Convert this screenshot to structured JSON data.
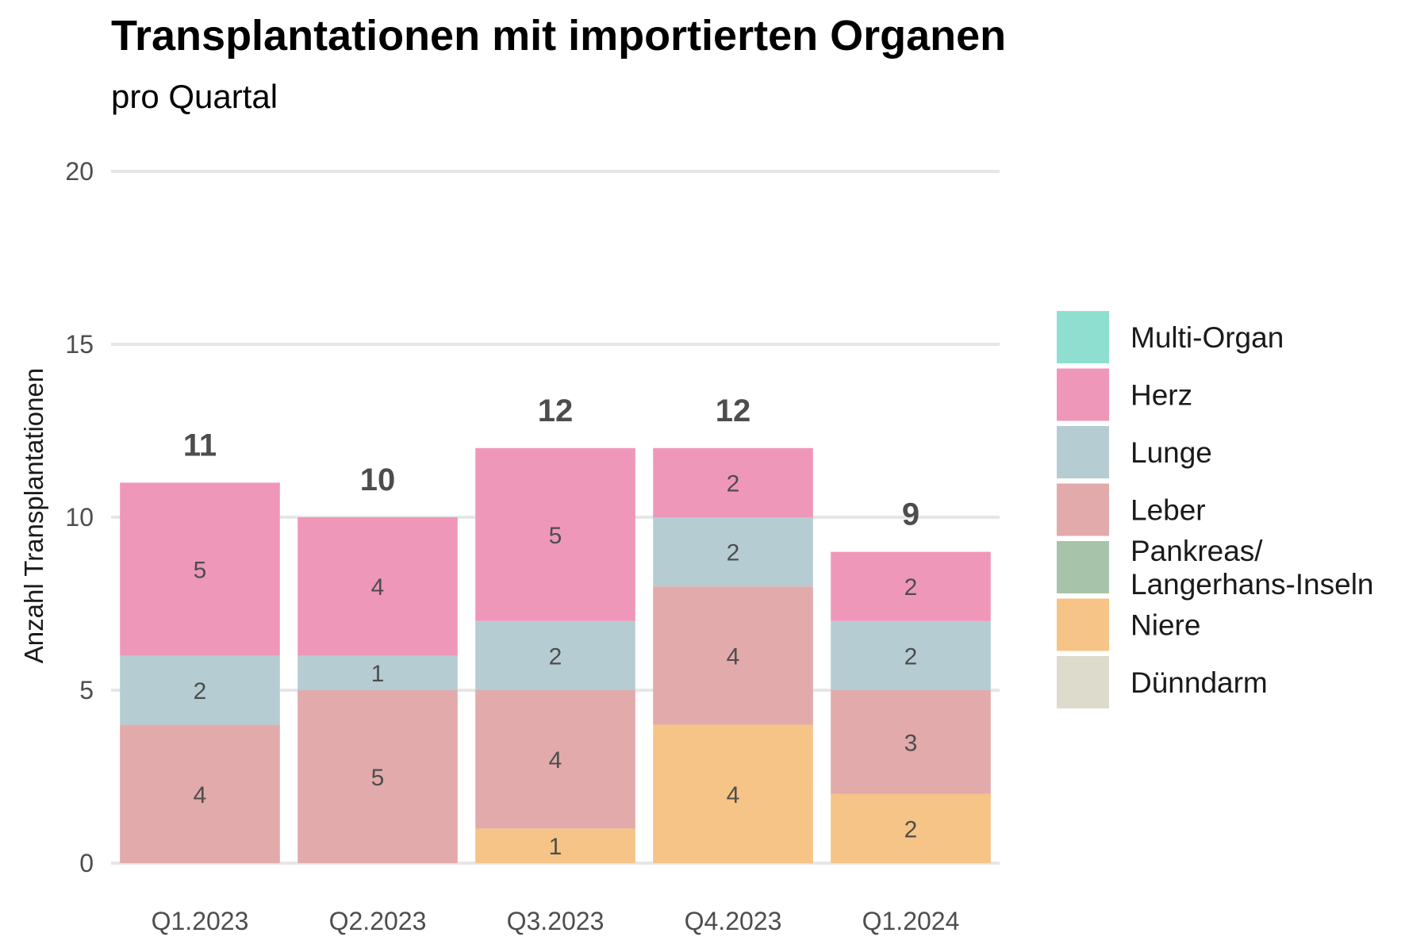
{
  "chart_data": {
    "type": "bar",
    "stacked": true,
    "title": "Transplantationen mit importierten Organen",
    "subtitle": "pro Quartal",
    "xlabel": "",
    "ylabel": "Anzahl Transplantationen",
    "ylim": [
      0,
      20
    ],
    "yticks": [
      0,
      5,
      10,
      15,
      20
    ],
    "grid": true,
    "legend_position": "right",
    "categories": [
      "Q1.2023",
      "Q2.2023",
      "Q3.2023",
      "Q4.2023",
      "Q1.2024"
    ],
    "totals": [
      11,
      10,
      12,
      12,
      9
    ],
    "series": [
      {
        "name": "Multi-Organ",
        "color": "#8fdfd0",
        "values": [
          0,
          0,
          0,
          0,
          0
        ]
      },
      {
        "name": "Herz",
        "color": "#ef97b9",
        "values": [
          5,
          4,
          5,
          2,
          2
        ]
      },
      {
        "name": "Lunge",
        "color": "#b5cdd2",
        "values": [
          2,
          1,
          2,
          2,
          2
        ]
      },
      {
        "name": "Leber",
        "color": "#e2aaab",
        "values": [
          4,
          5,
          4,
          4,
          3
        ]
      },
      {
        "name": "Pankreas/\nLangerhans-Inseln",
        "color": "#a7c4ab",
        "values": [
          0,
          0,
          0,
          0,
          0
        ]
      },
      {
        "name": "Niere",
        "color": "#f5c486",
        "values": [
          0,
          0,
          1,
          4,
          2
        ]
      },
      {
        "name": "Dünndarm",
        "color": "#dcdbcc",
        "values": [
          0,
          0,
          0,
          0,
          0
        ]
      }
    ]
  }
}
